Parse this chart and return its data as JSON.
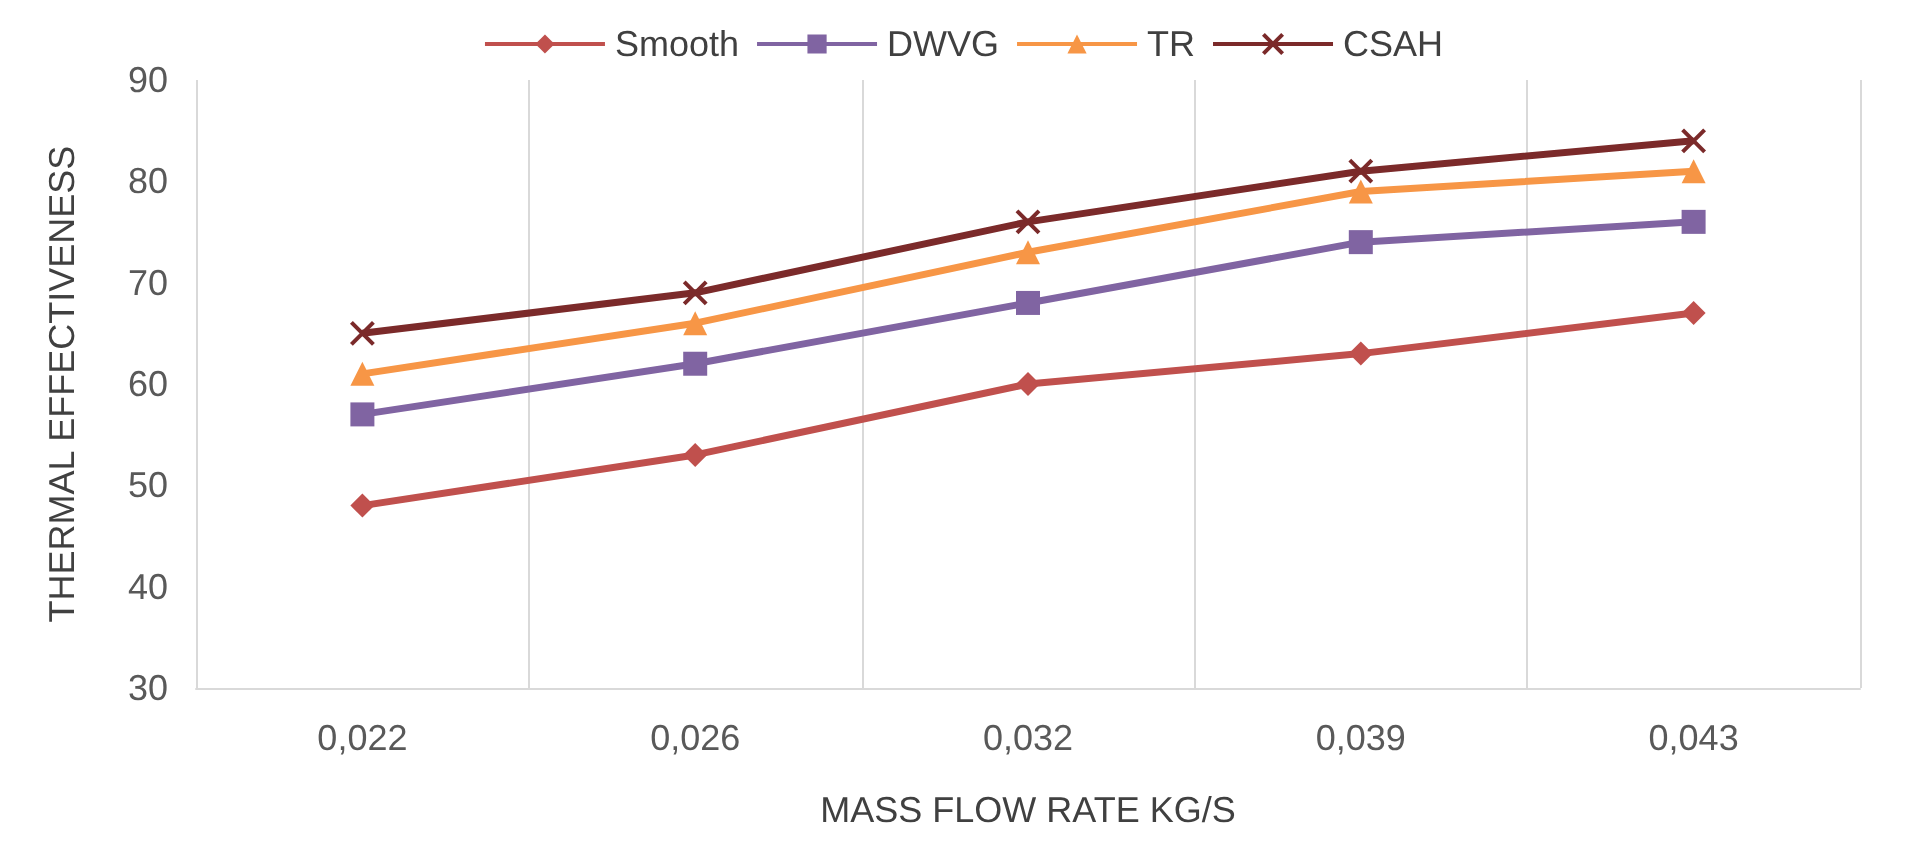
{
  "chart_data": {
    "type": "line",
    "xlabel": "MASS FLOW RATE KG/S",
    "ylabel": "THERMAL EFFECTIVENESS",
    "categories": [
      "0,022",
      "0,026",
      "0,032",
      "0,039",
      "0,043"
    ],
    "series": [
      {
        "name": "Smooth",
        "color": "#c0504d",
        "marker": "diamond",
        "values": [
          48,
          53,
          60,
          63,
          67
        ]
      },
      {
        "name": "DWVG",
        "color": "#8064a2",
        "marker": "square",
        "values": [
          57,
          62,
          68,
          74,
          76
        ]
      },
      {
        "name": "TR",
        "color": "#f79646",
        "marker": "triangle",
        "values": [
          61,
          66,
          73,
          79,
          81
        ]
      },
      {
        "name": "CSAH",
        "color": "#7b2a2a",
        "marker": "cross",
        "values": [
          65,
          69,
          76,
          81,
          84
        ]
      }
    ],
    "ylim": [
      30,
      90
    ],
    "yticks": [
      30,
      40,
      50,
      60,
      70,
      80,
      90
    ],
    "grid": "x",
    "legend": "top",
    "line_style": "solid"
  }
}
